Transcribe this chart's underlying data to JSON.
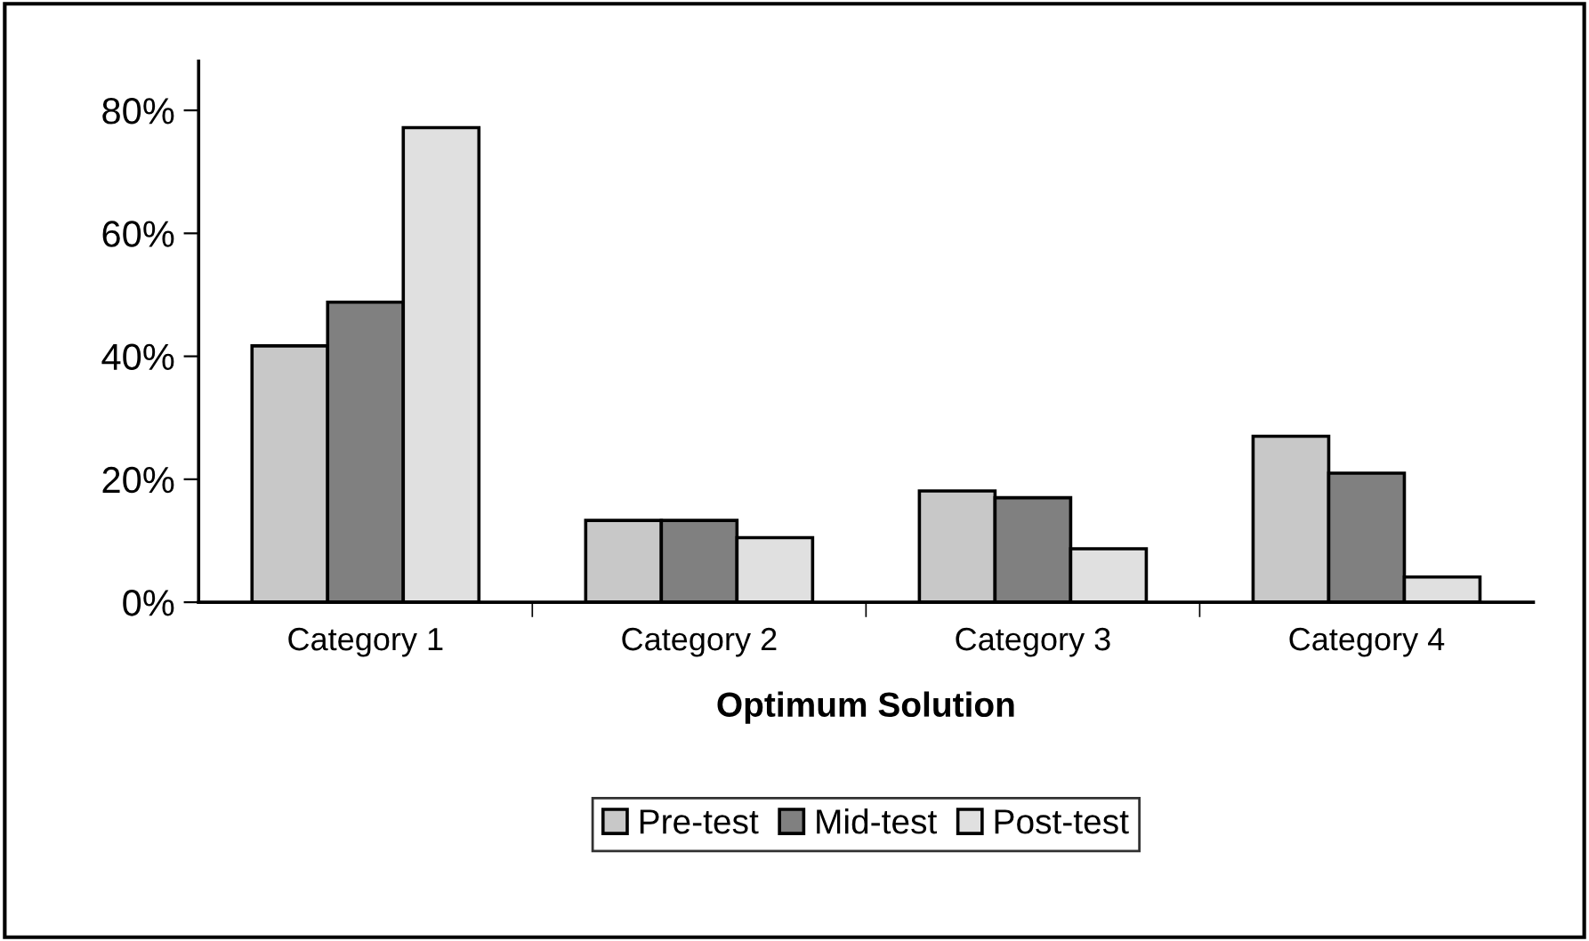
{
  "chart_data": {
    "type": "bar",
    "xlabel": "Optimum Solution",
    "categories": [
      "Category 1",
      "Category 2",
      "Category 3",
      "Category 4"
    ],
    "series": [
      {
        "name": "Pre-test",
        "color": "#c8c8c8",
        "values": [
          41.7,
          13.3,
          18.1,
          27.0
        ]
      },
      {
        "name": "Mid-test",
        "color": "#808080",
        "values": [
          48.8,
          13.3,
          17.0,
          21.0
        ]
      },
      {
        "name": "Post-test",
        "color": "#e0e0e0",
        "values": [
          77.2,
          10.5,
          8.7,
          4.1
        ]
      }
    ],
    "ylim": [
      0,
      88
    ],
    "yticks": [
      {
        "value": 0,
        "label": "0%"
      },
      {
        "value": 20,
        "label": "20%"
      },
      {
        "value": 40,
        "label": "40%"
      },
      {
        "value": 60,
        "label": "60%"
      },
      {
        "value": 80,
        "label": "80%"
      }
    ],
    "grid": false,
    "legend": "bottom"
  }
}
